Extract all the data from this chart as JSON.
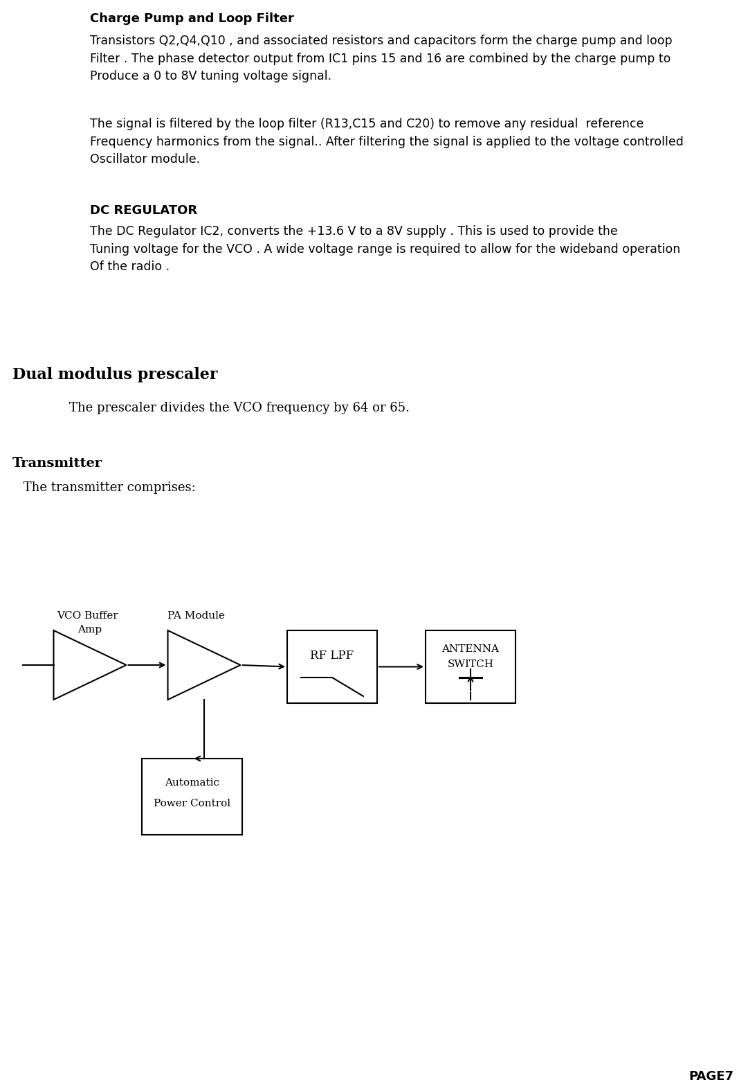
{
  "background_color": "#ffffff",
  "page_width": 10.81,
  "page_height": 15.59,
  "section1_title": "Charge Pump and Loop Filter",
  "section1_para1": "Transistors Q2,Q4,Q10 , and associated resistors and capacitors form the charge pump and loop\nFilter . The phase detector output from IC1 pins 15 and 16 are combined by the charge pump to\nProduce a 0 to 8V tuning voltage signal.",
  "section1_para2": "The signal is filtered by the loop filter (R13,C15 and C20) to remove any residual  reference\nFrequency harmonics from the signal.. After filtering the signal is applied to the voltage controlled\nOscillator module.",
  "section2_title": "DC REGULATOR",
  "section2_para": "The DC Regulator IC2, converts the +13.6 V to a 8V supply . This is used to provide the\nTuning voltage for the VCO . A wide voltage range is required to allow for the wideband operation\nOf the radio .",
  "section3_title": "Dual modulus prescaler",
  "section3_para": "The prescaler divides the VCO frequency by 64 or 65.",
  "section4_title": "Transmitter",
  "section4_para": " The transmitter comprises:",
  "page_label": "PAGE7",
  "tri1_label_top": "VCO Buffer",
  "tri1_label_bot": "Amp",
  "tri2_label_top": "PA Module",
  "box1_label": "RF LPF",
  "box2_label_line1": "ANTENNA",
  "box2_label_line2": "SWITCH",
  "box3_label_line1": "Automatic",
  "box3_label_line2": "Power Control"
}
